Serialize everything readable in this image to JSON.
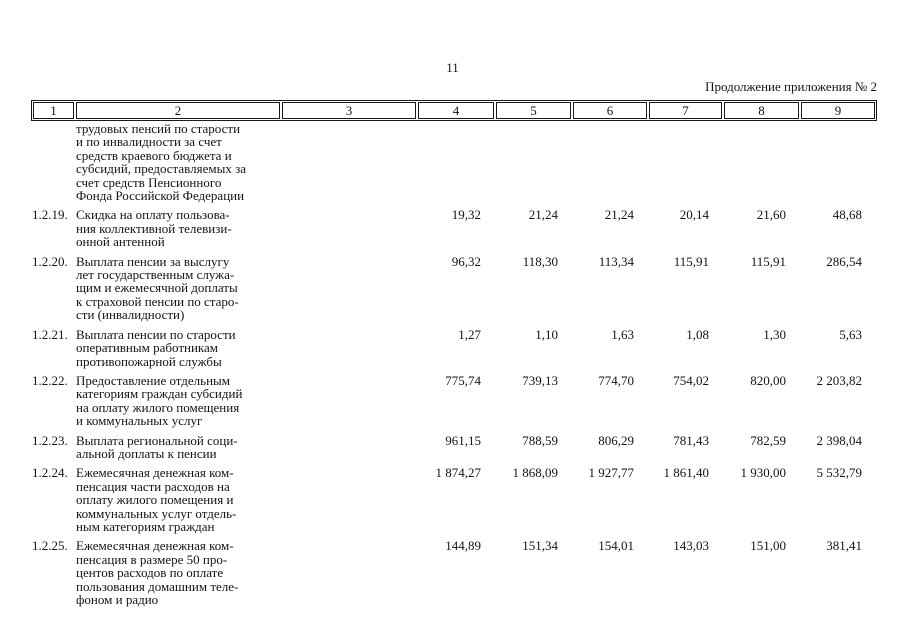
{
  "page": {
    "number": "11",
    "continuation_note": "Продолжение приложения № 2"
  },
  "table": {
    "header_columns": [
      "1",
      "2",
      "3",
      "4",
      "5",
      "6",
      "7",
      "8",
      "9"
    ],
    "rows": [
      {
        "num": "",
        "description_lines": [
          "трудовых пенсий по старости",
          "и по инвалидности за счет",
          "средств краевого бюджета и",
          "субсидий, предоставляемых за",
          "счет средств Пенсионного",
          "Фонда Российской Федерации"
        ],
        "values": [
          "",
          "",
          "",
          "",
          "",
          ""
        ]
      },
      {
        "num": "1.2.19.",
        "description_lines": [
          "Скидка на оплату пользова-",
          "ния коллективной телевизи-",
          "онной антенной"
        ],
        "values": [
          "19,32",
          "21,24",
          "21,24",
          "20,14",
          "21,60",
          "48,68"
        ]
      },
      {
        "num": "1.2.20.",
        "description_lines": [
          "Выплата пенсии за выслугу",
          "лет государственным служа-",
          "щим и ежемесячной доплаты",
          "к страховой пенсии по старо-",
          "сти (инвалидности)"
        ],
        "values": [
          "96,32",
          "118,30",
          "113,34",
          "115,91",
          "115,91",
          "286,54"
        ]
      },
      {
        "num": "1.2.21.",
        "description_lines": [
          "Выплата пенсии по старости",
          "оперативным работникам",
          "противопожарной службы"
        ],
        "values": [
          "1,27",
          "1,10",
          "1,63",
          "1,08",
          "1,30",
          "5,63"
        ]
      },
      {
        "num": "1.2.22.",
        "description_lines": [
          "Предоставление отдельным",
          "категориям граждан субсидий",
          "на оплату жилого помещения",
          "и коммунальных услуг"
        ],
        "values": [
          "775,74",
          "739,13",
          "774,70",
          "754,02",
          "820,00",
          "2 203,82"
        ]
      },
      {
        "num": "1.2.23.",
        "description_lines": [
          "Выплата региональной соци-",
          "альной доплаты к пенсии"
        ],
        "values": [
          "961,15",
          "788,59",
          "806,29",
          "781,43",
          "782,59",
          "2 398,04"
        ]
      },
      {
        "num": "1.2.24.",
        "description_lines": [
          "Ежемесячная денежная ком-",
          "пенсация части расходов на",
          "оплату жилого помещения и",
          "коммунальных услуг отдель-",
          "ным категориям граждан"
        ],
        "values": [
          "1 874,27",
          "1 868,09",
          "1 927,77",
          "1 861,40",
          "1 930,00",
          "5 532,79"
        ]
      },
      {
        "num": "1.2.25.",
        "description_lines": [
          "Ежемесячная денежная ком-",
          "пенсация в размере 50 про-",
          "центов расходов по оплате",
          "пользования домашним теле-",
          "фоном и радио"
        ],
        "values": [
          "144,89",
          "151,34",
          "154,01",
          "143,03",
          "151,00",
          "381,41"
        ]
      }
    ]
  }
}
